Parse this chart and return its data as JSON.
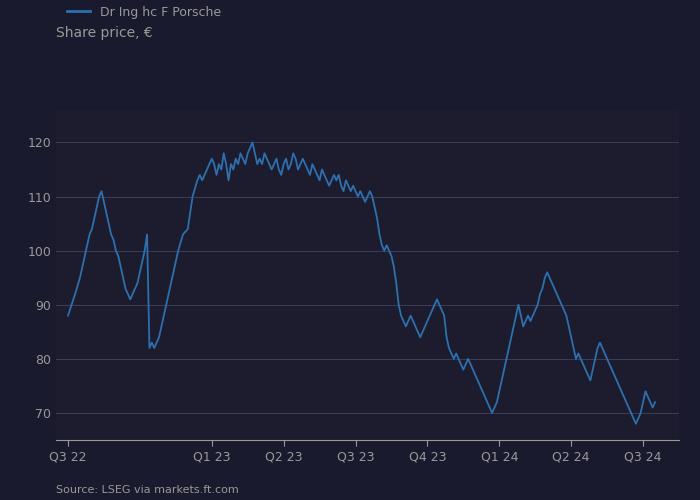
{
  "title": "Share price, €",
  "legend_label": "Dr Ing hc F Porsche",
  "source": "Source: LSEG via markets.ft.com",
  "line_color": "#2e6fad",
  "bg_color": "#1a1a2e",
  "plot_bg_color": "#1c1c2e",
  "grid_color": "#3a3a5c",
  "text_color": "#aaaaaa",
  "title_color": "#999999",
  "ylim": [
    65,
    126
  ],
  "yticks": [
    70,
    80,
    90,
    100,
    110,
    120
  ],
  "x_tick_labels": [
    "Q3 22",
    "Q1 23",
    "Q2 23",
    "Q3 23",
    "Q4 23",
    "Q1 24",
    "Q2 24",
    "Q3 24"
  ],
  "x_tick_positions": [
    0,
    6,
    9,
    12,
    15,
    18,
    21,
    24
  ],
  "xlim": [
    -0.5,
    25.5
  ],
  "data": [
    [
      0.0,
      88
    ],
    [
      0.15,
      90
    ],
    [
      0.3,
      92
    ],
    [
      0.5,
      95
    ],
    [
      0.7,
      99
    ],
    [
      0.9,
      103
    ],
    [
      1.0,
      104
    ],
    [
      1.1,
      106
    ],
    [
      1.2,
      108
    ],
    [
      1.3,
      110
    ],
    [
      1.4,
      111
    ],
    [
      1.5,
      109
    ],
    [
      1.6,
      107
    ],
    [
      1.7,
      105
    ],
    [
      1.8,
      103
    ],
    [
      1.9,
      102
    ],
    [
      2.0,
      100
    ],
    [
      2.1,
      99
    ],
    [
      2.2,
      97
    ],
    [
      2.3,
      95
    ],
    [
      2.4,
      93
    ],
    [
      2.5,
      92
    ],
    [
      2.6,
      91
    ],
    [
      2.7,
      92
    ],
    [
      2.8,
      93
    ],
    [
      2.9,
      94
    ],
    [
      3.0,
      96
    ],
    [
      3.1,
      98
    ],
    [
      3.2,
      100
    ],
    [
      3.3,
      103
    ],
    [
      3.4,
      82
    ],
    [
      3.5,
      83
    ],
    [
      3.6,
      82
    ],
    [
      3.8,
      84
    ],
    [
      4.0,
      88
    ],
    [
      4.2,
      92
    ],
    [
      4.4,
      96
    ],
    [
      4.6,
      100
    ],
    [
      4.8,
      103
    ],
    [
      5.0,
      104
    ],
    [
      5.2,
      110
    ],
    [
      5.4,
      113
    ],
    [
      5.5,
      114
    ],
    [
      5.6,
      113
    ],
    [
      5.8,
      115
    ],
    [
      5.9,
      116
    ],
    [
      6.0,
      117
    ],
    [
      6.1,
      116
    ],
    [
      6.2,
      114
    ],
    [
      6.3,
      116
    ],
    [
      6.4,
      115
    ],
    [
      6.5,
      118
    ],
    [
      6.6,
      116
    ],
    [
      6.7,
      113
    ],
    [
      6.8,
      116
    ],
    [
      6.9,
      115
    ],
    [
      7.0,
      117
    ],
    [
      7.1,
      116
    ],
    [
      7.2,
      118
    ],
    [
      7.3,
      117
    ],
    [
      7.4,
      116
    ],
    [
      7.5,
      118
    ],
    [
      7.6,
      119
    ],
    [
      7.7,
      120
    ],
    [
      7.8,
      118
    ],
    [
      7.9,
      116
    ],
    [
      8.0,
      117
    ],
    [
      8.1,
      116
    ],
    [
      8.2,
      118
    ],
    [
      8.3,
      117
    ],
    [
      8.4,
      116
    ],
    [
      8.5,
      115
    ],
    [
      8.6,
      116
    ],
    [
      8.7,
      117
    ],
    [
      8.8,
      115
    ],
    [
      8.9,
      114
    ],
    [
      9.0,
      116
    ],
    [
      9.1,
      117
    ],
    [
      9.2,
      115
    ],
    [
      9.3,
      116
    ],
    [
      9.4,
      118
    ],
    [
      9.5,
      117
    ],
    [
      9.6,
      115
    ],
    [
      9.7,
      116
    ],
    [
      9.8,
      117
    ],
    [
      9.9,
      116
    ],
    [
      10.0,
      115
    ],
    [
      10.1,
      114
    ],
    [
      10.2,
      116
    ],
    [
      10.3,
      115
    ],
    [
      10.4,
      114
    ],
    [
      10.5,
      113
    ],
    [
      10.6,
      115
    ],
    [
      10.7,
      114
    ],
    [
      10.8,
      113
    ],
    [
      10.9,
      112
    ],
    [
      11.0,
      113
    ],
    [
      11.1,
      114
    ],
    [
      11.2,
      113
    ],
    [
      11.3,
      114
    ],
    [
      11.4,
      112
    ],
    [
      11.5,
      111
    ],
    [
      11.6,
      113
    ],
    [
      11.7,
      112
    ],
    [
      11.8,
      111
    ],
    [
      11.9,
      112
    ],
    [
      12.0,
      111
    ],
    [
      12.1,
      110
    ],
    [
      12.2,
      111
    ],
    [
      12.3,
      110
    ],
    [
      12.4,
      109
    ],
    [
      12.5,
      110
    ],
    [
      12.6,
      111
    ],
    [
      12.7,
      110
    ],
    [
      12.8,
      108
    ],
    [
      12.9,
      106
    ],
    [
      13.0,
      103
    ],
    [
      13.1,
      101
    ],
    [
      13.2,
      100
    ],
    [
      13.3,
      101
    ],
    [
      13.4,
      100
    ],
    [
      13.5,
      99
    ],
    [
      13.6,
      97
    ],
    [
      13.7,
      94
    ],
    [
      13.8,
      90
    ],
    [
      13.9,
      88
    ],
    [
      14.0,
      87
    ],
    [
      14.1,
      86
    ],
    [
      14.2,
      87
    ],
    [
      14.3,
      88
    ],
    [
      14.4,
      87
    ],
    [
      14.5,
      86
    ],
    [
      14.6,
      85
    ],
    [
      14.7,
      84
    ],
    [
      14.8,
      85
    ],
    [
      14.9,
      86
    ],
    [
      15.0,
      87
    ],
    [
      15.1,
      88
    ],
    [
      15.2,
      89
    ],
    [
      15.3,
      90
    ],
    [
      15.4,
      91
    ],
    [
      15.5,
      90
    ],
    [
      15.6,
      89
    ],
    [
      15.7,
      88
    ],
    [
      15.8,
      84
    ],
    [
      15.9,
      82
    ],
    [
      16.0,
      81
    ],
    [
      16.1,
      80
    ],
    [
      16.2,
      81
    ],
    [
      16.3,
      80
    ],
    [
      16.4,
      79
    ],
    [
      16.5,
      78
    ],
    [
      16.6,
      79
    ],
    [
      16.7,
      80
    ],
    [
      16.8,
      79
    ],
    [
      16.9,
      78
    ],
    [
      17.0,
      77
    ],
    [
      17.1,
      76
    ],
    [
      17.2,
      75
    ],
    [
      17.3,
      74
    ],
    [
      17.4,
      73
    ],
    [
      17.5,
      72
    ],
    [
      17.6,
      71
    ],
    [
      17.7,
      70
    ],
    [
      17.8,
      71
    ],
    [
      17.9,
      72
    ],
    [
      18.0,
      74
    ],
    [
      18.1,
      76
    ],
    [
      18.2,
      78
    ],
    [
      18.3,
      80
    ],
    [
      18.4,
      82
    ],
    [
      18.5,
      84
    ],
    [
      18.6,
      86
    ],
    [
      18.7,
      88
    ],
    [
      18.8,
      90
    ],
    [
      18.9,
      88
    ],
    [
      19.0,
      86
    ],
    [
      19.1,
      87
    ],
    [
      19.2,
      88
    ],
    [
      19.3,
      87
    ],
    [
      19.4,
      88
    ],
    [
      19.5,
      89
    ],
    [
      19.6,
      90
    ],
    [
      19.7,
      92
    ],
    [
      19.8,
      93
    ],
    [
      19.9,
      95
    ],
    [
      20.0,
      96
    ],
    [
      20.1,
      95
    ],
    [
      20.2,
      94
    ],
    [
      20.3,
      93
    ],
    [
      20.4,
      92
    ],
    [
      20.5,
      91
    ],
    [
      20.6,
      90
    ],
    [
      20.7,
      89
    ],
    [
      20.8,
      88
    ],
    [
      20.9,
      86
    ],
    [
      21.0,
      84
    ],
    [
      21.1,
      82
    ],
    [
      21.2,
      80
    ],
    [
      21.3,
      81
    ],
    [
      21.4,
      80
    ],
    [
      21.5,
      79
    ],
    [
      21.6,
      78
    ],
    [
      21.7,
      77
    ],
    [
      21.8,
      76
    ],
    [
      21.9,
      78
    ],
    [
      22.0,
      80
    ],
    [
      22.1,
      82
    ],
    [
      22.2,
      83
    ],
    [
      22.3,
      82
    ],
    [
      22.4,
      81
    ],
    [
      22.5,
      80
    ],
    [
      22.6,
      79
    ],
    [
      22.7,
      78
    ],
    [
      22.8,
      77
    ],
    [
      22.9,
      76
    ],
    [
      23.0,
      75
    ],
    [
      23.1,
      74
    ],
    [
      23.2,
      73
    ],
    [
      23.3,
      72
    ],
    [
      23.4,
      71
    ],
    [
      23.5,
      70
    ],
    [
      23.6,
      69
    ],
    [
      23.7,
      68
    ],
    [
      23.8,
      69
    ],
    [
      23.9,
      70
    ],
    [
      24.0,
      72
    ],
    [
      24.1,
      74
    ],
    [
      24.2,
      73
    ],
    [
      24.3,
      72
    ],
    [
      24.4,
      71
    ],
    [
      24.5,
      72
    ]
  ]
}
